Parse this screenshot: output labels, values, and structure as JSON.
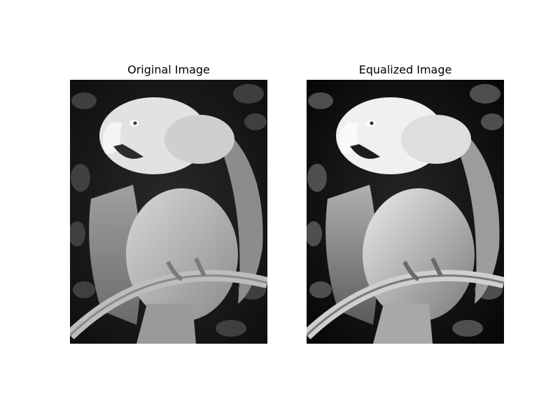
{
  "panels": [
    {
      "title": "Original Image"
    },
    {
      "title": "Equalized Image"
    }
  ],
  "colors": {
    "background": "#ffffff",
    "foliage": "#1a1a1a",
    "parrot_light": "#e6e6e6",
    "perch": "#b4b4b4"
  }
}
